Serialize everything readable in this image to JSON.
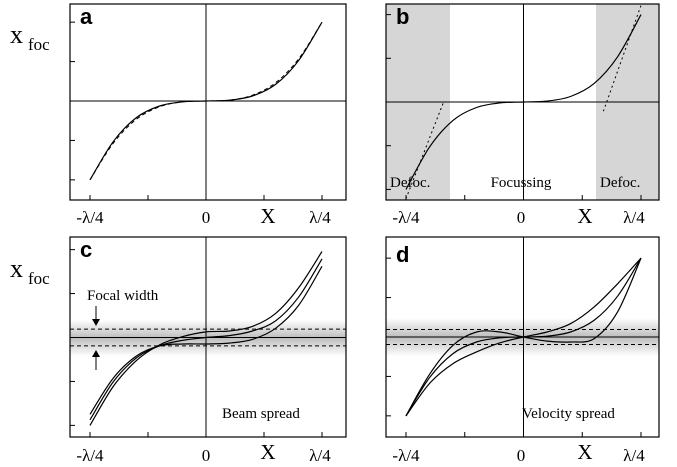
{
  "ylabel": "x",
  "ylabel_sub": "foc",
  "panels": {
    "a": {
      "label": "a"
    },
    "b": {
      "label": "b",
      "regions": [
        "Defoc.",
        "Focussing",
        "Defoc."
      ]
    },
    "c": {
      "label": "c",
      "annotation_focal": "Focal width",
      "annotation_corner": "Beam spread"
    },
    "d": {
      "label": "d",
      "annotation_corner": "Velocity spread"
    }
  },
  "xticks": [
    "-λ/4",
    "0",
    "λ/4"
  ],
  "xlabel": "X",
  "colors": {
    "shade": "#d6d6d6",
    "band": "#c8c8c8",
    "line": "#000000"
  },
  "chart_data": [
    {
      "type": "line",
      "panel": "a",
      "x_ticks": [
        "-λ/4",
        "0",
        "λ/4"
      ],
      "xlim": [
        -0.25,
        0.25
      ],
      "ylim": [
        -1,
        1
      ],
      "series": [
        {
          "style": "solid",
          "x": [
            -0.25,
            -0.2,
            -0.15,
            -0.1,
            -0.05,
            0,
            0.05,
            0.1,
            0.15,
            0.2,
            0.25
          ],
          "y": [
            -0.95,
            -0.49,
            -0.2,
            -0.06,
            -0.01,
            0,
            0.01,
            0.06,
            0.2,
            0.49,
            0.95
          ]
        },
        {
          "style": "dashed",
          "x": [
            -0.25,
            -0.2,
            -0.15,
            -0.1,
            -0.05,
            0,
            0.05,
            0.1,
            0.15,
            0.2,
            0.25
          ],
          "y": [
            -0.95,
            -0.51,
            -0.22,
            -0.07,
            -0.01,
            0,
            0.01,
            0.07,
            0.22,
            0.51,
            0.95
          ]
        }
      ]
    },
    {
      "type": "line",
      "panel": "b",
      "x_ticks": [
        "-λ/4",
        "0",
        "λ/4"
      ],
      "xlim": [
        -0.25,
        0.25
      ],
      "ylim": [
        -1,
        1
      ],
      "shaded_x": [
        [
          -0.25,
          -0.17
        ],
        [
          0.17,
          0.25
        ]
      ],
      "series": [
        {
          "style": "solid",
          "x": [
            -0.25,
            -0.2,
            -0.15,
            -0.1,
            -0.05,
            0,
            0.05,
            0.1,
            0.15,
            0.2,
            0.25
          ],
          "y": [
            -0.95,
            -0.49,
            -0.2,
            -0.06,
            -0.01,
            0,
            0.01,
            0.06,
            0.2,
            0.49,
            0.95
          ]
        },
        {
          "style": "dotted",
          "x": [
            -0.25,
            -0.17
          ],
          "y": [
            -1.05,
            0.0
          ]
        },
        {
          "style": "dotted",
          "x": [
            0.17,
            0.25
          ],
          "y": [
            -0.1,
            1.05
          ]
        }
      ]
    },
    {
      "type": "line",
      "panel": "c",
      "x_ticks": [
        "-λ/4",
        "0",
        "λ/4"
      ],
      "xlim": [
        -0.25,
        0.25
      ],
      "ylim": [
        -1,
        1
      ],
      "focal_band": [
        -0.09,
        0.09
      ],
      "series": [
        {
          "style": "solid",
          "x": [
            -0.25,
            -0.2,
            -0.15,
            -0.1,
            -0.05,
            0,
            0.05,
            0.1,
            0.15,
            0.2,
            0.25
          ],
          "y": [
            -0.83,
            -0.44,
            -0.2,
            -0.09,
            -0.07,
            -0.07,
            -0.06,
            -0.02,
            0.1,
            0.35,
            0.77
          ]
        },
        {
          "style": "solid",
          "x": [
            -0.25,
            -0.2,
            -0.15,
            -0.1,
            -0.05,
            0,
            0.05,
            0.1,
            0.15,
            0.2,
            0.25
          ],
          "y": [
            -0.89,
            -0.48,
            -0.22,
            -0.09,
            -0.03,
            0,
            0.02,
            0.07,
            0.18,
            0.44,
            0.85
          ]
        },
        {
          "style": "solid",
          "x": [
            -0.25,
            -0.2,
            -0.15,
            -0.1,
            -0.05,
            0,
            0.05,
            0.1,
            0.15,
            0.2,
            0.25
          ],
          "y": [
            -0.95,
            -0.53,
            -0.25,
            -0.08,
            0.01,
            0.06,
            0.07,
            0.12,
            0.26,
            0.54,
            0.93
          ]
        }
      ]
    },
    {
      "type": "line",
      "panel": "d",
      "x_ticks": [
        "-λ/4",
        "0",
        "λ/4"
      ],
      "xlim": [
        -0.25,
        0.25
      ],
      "ylim": [
        -1,
        1
      ],
      "focal_band": [
        -0.09,
        0.09
      ],
      "series": [
        {
          "style": "solid",
          "x": [
            -0.25,
            -0.2,
            -0.15,
            -0.1,
            -0.05,
            0,
            0.05,
            0.1,
            0.15,
            0.2,
            0.25
          ],
          "y": [
            -0.95,
            -0.45,
            -0.1,
            0.06,
            0.06,
            0,
            -0.05,
            -0.06,
            -0.02,
            0.3,
            0.95
          ]
        },
        {
          "style": "solid",
          "x": [
            -0.25,
            -0.2,
            -0.15,
            -0.1,
            -0.05,
            0,
            0.05,
            0.1,
            0.15,
            0.2,
            0.25
          ],
          "y": [
            -0.95,
            -0.49,
            -0.2,
            -0.06,
            -0.01,
            0,
            0.01,
            0.06,
            0.2,
            0.49,
            0.95
          ]
        },
        {
          "style": "solid",
          "x": [
            -0.25,
            -0.2,
            -0.15,
            -0.1,
            -0.05,
            0,
            0.05,
            0.1,
            0.15,
            0.2,
            0.25
          ],
          "y": [
            -0.95,
            -0.56,
            -0.32,
            -0.18,
            -0.07,
            0,
            0.06,
            0.16,
            0.36,
            0.64,
            0.95
          ]
        }
      ]
    }
  ]
}
